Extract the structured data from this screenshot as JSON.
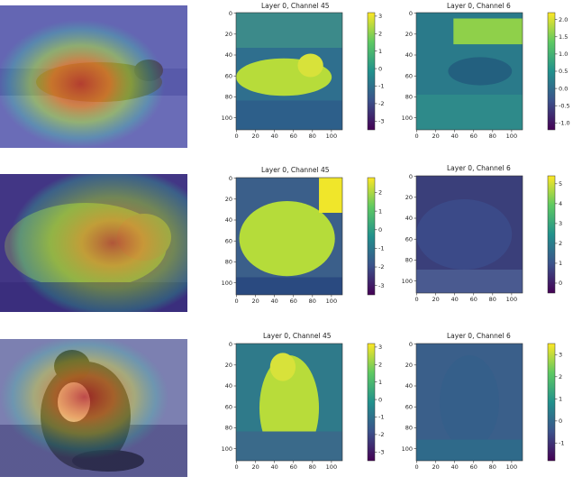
{
  "chart_data": [
    {
      "type": "heatmap",
      "row": 1,
      "title": "Layer 0, Channel 45",
      "x_ticks": [
        "0",
        "20",
        "40",
        "60",
        "80",
        "100"
      ],
      "y_ticks": [
        "0",
        "20",
        "40",
        "60",
        "80",
        "100"
      ],
      "colorbar_ticks": [
        "3",
        "2",
        "1",
        "0",
        "-1",
        "-2",
        "-3"
      ],
      "colorbar_range": [
        -3.5,
        3.2
      ],
      "colormap": "viridis"
    },
    {
      "type": "heatmap",
      "row": 1,
      "title": "Layer 0, Channel 6",
      "x_ticks": [
        "0",
        "20",
        "40",
        "60",
        "80",
        "100"
      ],
      "y_ticks": [
        "0",
        "20",
        "40",
        "60",
        "80",
        "100"
      ],
      "colorbar_ticks": [
        "2.0",
        "1.5",
        "1.0",
        "0.5",
        "0.0",
        "-0.5",
        "-1.0"
      ],
      "colorbar_range": [
        -1.2,
        2.2
      ],
      "colormap": "viridis"
    },
    {
      "type": "heatmap",
      "row": 2,
      "title": "Layer 0, Channel 45",
      "x_ticks": [
        "0",
        "20",
        "40",
        "60",
        "80",
        "100"
      ],
      "y_ticks": [
        "0",
        "20",
        "40",
        "60",
        "80",
        "100"
      ],
      "colorbar_ticks": [
        "2",
        "1",
        "0",
        "-1",
        "-2",
        "-3"
      ],
      "colorbar_range": [
        -3.5,
        2.8
      ],
      "colormap": "viridis"
    },
    {
      "type": "heatmap",
      "row": 2,
      "title": "Layer 0, Channel 6",
      "x_ticks": [
        "0",
        "20",
        "40",
        "60",
        "80",
        "100"
      ],
      "y_ticks": [
        "0",
        "20",
        "40",
        "60",
        "80",
        "100"
      ],
      "colorbar_ticks": [
        "5",
        "4",
        "3",
        "2",
        "1",
        "0"
      ],
      "colorbar_range": [
        -0.5,
        5.4
      ],
      "colormap": "viridis"
    },
    {
      "type": "heatmap",
      "row": 3,
      "title": "Layer 0, Channel 45",
      "x_ticks": [
        "0",
        "20",
        "40",
        "60",
        "80",
        "100"
      ],
      "y_ticks": [
        "0",
        "20",
        "40",
        "60",
        "80",
        "100"
      ],
      "colorbar_ticks": [
        "3",
        "2",
        "1",
        "0",
        "-1",
        "-2",
        "-3"
      ],
      "colorbar_range": [
        -3.5,
        3.2
      ],
      "colormap": "viridis"
    },
    {
      "type": "heatmap",
      "row": 3,
      "title": "Layer 0, Channel 6",
      "x_ticks": [
        "0",
        "20",
        "40",
        "60",
        "80",
        "100"
      ],
      "y_ticks": [
        "0",
        "20",
        "40",
        "60",
        "80",
        "100"
      ],
      "colorbar_ticks": [
        "3",
        "2",
        "1",
        "0",
        "-1"
      ],
      "colorbar_range": [
        -1.8,
        3.5
      ],
      "colormap": "viridis"
    }
  ],
  "overlays": [
    {
      "row": 1,
      "content": "cat lying on carpet with heatmap overlay"
    },
    {
      "row": 2,
      "content": "cat curled up sleeping with heatmap overlay"
    },
    {
      "row": 3,
      "content": "black and white cat sitting on rug with heatmap overlay"
    }
  ]
}
